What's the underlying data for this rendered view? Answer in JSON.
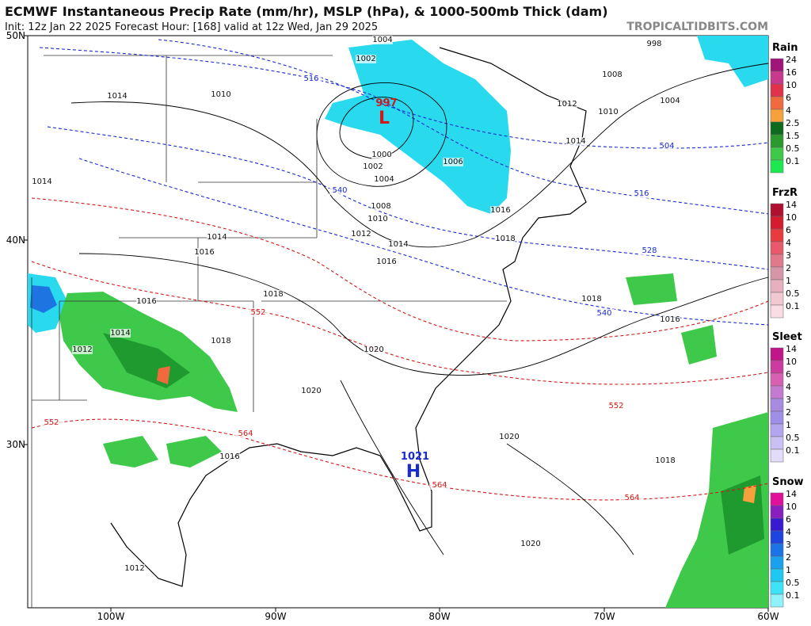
{
  "header": {
    "title": "ECMWF Instantaneous Precip Rate (mm/hr), MSLP (hPa), & 1000-500mb Thick (dam)",
    "subtitle": "Init: 12z Jan 22 2025   Forecast Hour: [168]   valid at 12z Wed, Jan 29 2025",
    "watermark": "TROPICALTIDBITS.COM"
  },
  "map": {
    "lat_labels": [
      "50N",
      "40N",
      "30N"
    ],
    "lon_labels": [
      "100W",
      "90W",
      "80W",
      "70W",
      "60W"
    ],
    "pressure_labels": [
      1004,
      1002,
      998,
      1008,
      1014,
      1010,
      1012,
      1010,
      1004,
      1014,
      1000,
      1002,
      1004,
      1006,
      1014,
      1016,
      1008,
      1010,
      1012,
      1014,
      1014,
      1018,
      1016,
      1016,
      1018,
      1016,
      1018,
      1014,
      1018,
      1016,
      1012,
      1020,
      1020,
      1020,
      1018,
      1016,
      1020,
      1012
    ],
    "thickness_labels_cold": [
      516,
      540,
      504,
      516,
      528,
      540
    ],
    "thickness_labels_warm": [
      552,
      552,
      564,
      564,
      552,
      564
    ],
    "low": {
      "pressure": 997,
      "label": "L"
    },
    "high": {
      "pressure": 1021,
      "label": "H"
    }
  },
  "legend": [
    {
      "title": "Rain",
      "ticks": [
        24,
        16,
        10,
        6,
        4,
        2.5,
        1.5,
        0.5,
        0.1
      ],
      "colors": [
        "#a0157a",
        "#c8388f",
        "#e0324b",
        "#ef6a3c",
        "#f6a13c",
        "#0c6b1c",
        "#2a9a2f",
        "#3fc94a",
        "#1ee850"
      ]
    },
    {
      "title": "FrzR",
      "ticks": [
        14,
        10,
        6,
        4,
        3,
        2,
        1,
        0.5,
        0.1
      ],
      "colors": [
        "#b01030",
        "#d41c2e",
        "#e83a3f",
        "#e85a6a",
        "#e07a8a",
        "#d696a8",
        "#e6b0bf",
        "#f2c8d2",
        "#f8dde5"
      ]
    },
    {
      "title": "Sleet",
      "ticks": [
        14,
        10,
        6,
        4,
        3,
        2,
        1,
        0.5,
        0.1
      ],
      "colors": [
        "#c0168a",
        "#cc3b9f",
        "#d85fb2",
        "#c47ad0",
        "#a88ae0",
        "#9f8fe8",
        "#b4a6ee",
        "#cbc0f4",
        "#e2dcf8"
      ]
    },
    {
      "title": "Snow",
      "ticks": [
        14,
        10,
        6,
        4,
        3,
        2,
        1,
        0.5,
        0.1
      ],
      "colors": [
        "#e0109a",
        "#8a1fc0",
        "#3a1ad0",
        "#1e44e0",
        "#1a74e8",
        "#19a0ee",
        "#1ec8f0",
        "#3ee4f6",
        "#90f2fa"
      ]
    }
  ]
}
